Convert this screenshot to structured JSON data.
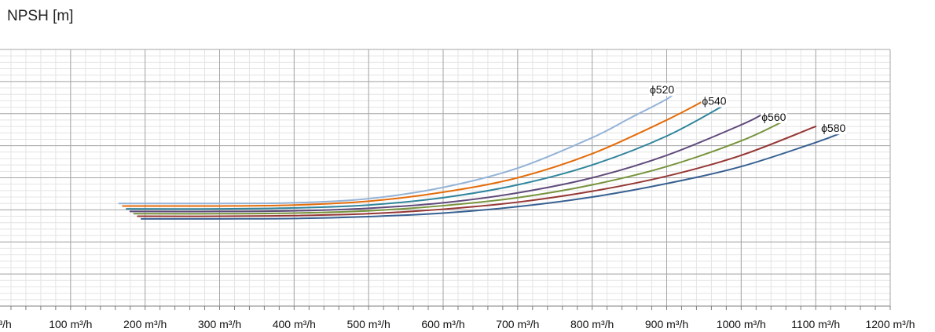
{
  "chart_data": {
    "type": "line",
    "title": "",
    "ylabel": "NPSH [m]",
    "xlabel": "",
    "x_unit": "m³/h",
    "xlim": [
      0,
      1200
    ],
    "ylim": [
      0,
      8
    ],
    "x_major_step": 100,
    "y_major_step": 1,
    "grid": true,
    "legend": "inline labels at curve ends",
    "x_tick_labels": [
      "0 m³/h",
      "100 m³/h",
      "200 m³/h",
      "300 m³/h",
      "400 m³/h",
      "500 m³/h",
      "600 m³/h",
      "700 m³/h",
      "800 m³/h",
      "900 m³/h",
      "1000 m³/h",
      "1100 m³/h",
      "1200 m³/h"
    ],
    "series": [
      {
        "name": "ϕ520",
        "color": "#95b3d7",
        "x": [
          165,
          300,
          400,
          500,
          600,
          700,
          800,
          850,
          900,
          910
        ],
        "y": [
          3.2,
          3.2,
          3.22,
          3.35,
          3.7,
          4.3,
          5.25,
          5.85,
          6.45,
          6.65
        ]
      },
      {
        "name": "",
        "color": "#e46c0a",
        "x": [
          170,
          300,
          400,
          500,
          600,
          700,
          800,
          900,
          950
        ],
        "y": [
          3.12,
          3.12,
          3.15,
          3.27,
          3.55,
          4.0,
          4.75,
          5.8,
          6.4
        ]
      },
      {
        "name": "ϕ540",
        "color": "#31859c",
        "x": [
          175,
          300,
          400,
          500,
          600,
          700,
          800,
          900,
          980
        ],
        "y": [
          3.03,
          3.03,
          3.06,
          3.15,
          3.38,
          3.78,
          4.4,
          5.3,
          6.3
        ]
      },
      {
        "name": "",
        "color": "#604a7b",
        "x": [
          180,
          300,
          400,
          500,
          600,
          700,
          800,
          900,
          1000,
          1030
        ],
        "y": [
          2.95,
          2.95,
          2.97,
          3.05,
          3.22,
          3.53,
          4.0,
          4.7,
          5.65,
          6.0
        ]
      },
      {
        "name": "ϕ560",
        "color": "#77933c",
        "x": [
          185,
          300,
          400,
          500,
          600,
          700,
          800,
          900,
          1000,
          1060
        ],
        "y": [
          2.88,
          2.88,
          2.9,
          2.97,
          3.13,
          3.38,
          3.78,
          4.35,
          5.15,
          5.8
        ]
      },
      {
        "name": "",
        "color": "#953735",
        "x": [
          190,
          300,
          400,
          500,
          600,
          700,
          800,
          900,
          1000,
          1100
        ],
        "y": [
          2.8,
          2.8,
          2.82,
          2.88,
          3.02,
          3.24,
          3.58,
          4.05,
          4.7,
          5.6
        ]
      },
      {
        "name": "ϕ580",
        "color": "#376092",
        "x": [
          195,
          300,
          400,
          500,
          600,
          700,
          800,
          900,
          1000,
          1100,
          1140
        ],
        "y": [
          2.72,
          2.72,
          2.73,
          2.79,
          2.9,
          3.1,
          3.4,
          3.82,
          4.35,
          5.1,
          5.45
        ]
      }
    ]
  }
}
